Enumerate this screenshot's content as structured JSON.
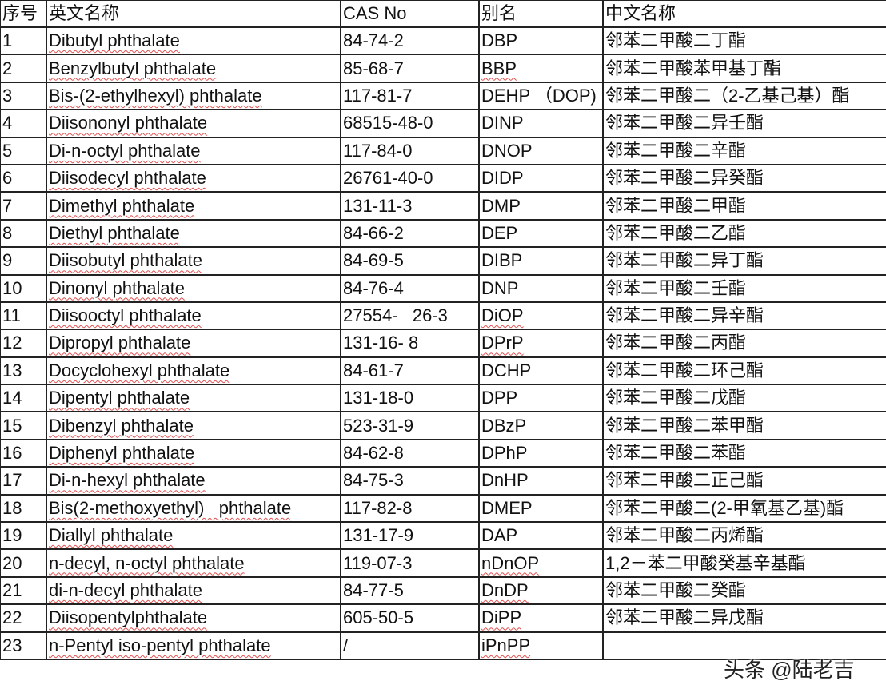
{
  "header": [
    "序号",
    "英文名称",
    "CAS No",
    "别名",
    "中文名称"
  ],
  "rows": [
    {
      "no": "1",
      "en": "Dibutyl phthalate",
      "cas": "84-74-2",
      "alias": "DBP",
      "cn": "邻苯二甲酸二丁酯"
    },
    {
      "no": "2",
      "en": "Benzylbutyl phthalate",
      "cas": "85-68-7",
      "alias": "BBP",
      "cn": "邻苯二甲酸苯甲基丁酯"
    },
    {
      "no": "3",
      "en": "Bis-(2-ethylhexyl) phthalate",
      "cas": "117-81-7",
      "alias": "DEHP （DOP)",
      "cn": "邻苯二甲酸二（2-乙基己基）酯"
    },
    {
      "no": "4",
      "en": "Diisononyl phthalate",
      "cas": "68515-48-0",
      "alias": "DINP",
      "cn": "邻苯二甲酸二异壬酯"
    },
    {
      "no": "5",
      "en": "Di-n-octyl phthalate",
      "cas": "117-84-0",
      "alias": "DNOP",
      "cn": "邻苯二甲酸二辛酯"
    },
    {
      "no": "6",
      "en": "Diisodecyl phthalate",
      "cas": "26761-40-0",
      "alias": "DIDP",
      "cn": "邻苯二甲酸二异癸酯"
    },
    {
      "no": "7",
      "en": "Dimethyl phthalate",
      "cas": "131-11-3",
      "alias": "DMP",
      "cn": "邻苯二甲酸二甲酯"
    },
    {
      "no": "8",
      "en": "Diethyl phthalate",
      "cas": "84-66-2",
      "alias": "DEP",
      "cn": "邻苯二甲酸二乙酯"
    },
    {
      "no": "9",
      "en": "Diisobutyl phthalate",
      "cas": "84-69-5",
      "alias": "DIBP",
      "cn": "邻苯二甲酸二异丁酯"
    },
    {
      "no": "10",
      "en": "Dinonyl phthalate",
      "cas": "84-76-4",
      "alias": "DNP",
      "cn": "邻苯二甲酸二壬酯"
    },
    {
      "no": "11",
      "en": "Diisooctyl phthalate",
      "cas": "27554-   26-3",
      "alias": "DiOP",
      "cn": "邻苯二甲酸二异辛酯"
    },
    {
      "no": "12",
      "en": "Dipropyl phthalate",
      "cas": "131-16- 8",
      "alias": "DPrP",
      "cn": "邻苯二甲酸二丙酯"
    },
    {
      "no": "13",
      "en": "Docyclohexyl phthalate",
      "cas": "84-61-7",
      "alias": "DCHP",
      "cn": "邻苯二甲酸二环己酯"
    },
    {
      "no": "14",
      "en": "Dipentyl phthalate",
      "cas": "131-18-0",
      "alias": "DPP",
      "cn": "邻苯二甲酸二戊酯"
    },
    {
      "no": "15",
      "en": "Dibenzyl phthalate",
      "cas": "523-31-9",
      "alias": "DBzP",
      "cn": "邻苯二甲酸二苯甲酯"
    },
    {
      "no": "16",
      "en": "Diphenyl phthalate",
      "cas": "84-62-8",
      "alias": "DPhP",
      "cn": "邻苯二甲酸二苯酯"
    },
    {
      "no": "17",
      "en": "Di-n-hexyl phthalate",
      "cas": "84-75-3",
      "alias": "DnHP",
      "cn": "邻苯二甲酸二正己酯"
    },
    {
      "no": "18",
      "en": "Bis(2-methoxyethyl)   phthalate",
      "cas": "117-82-8",
      "alias": "DMEP",
      "cn": "邻苯二甲酸二(2-甲氧基乙基)酯"
    },
    {
      "no": "19",
      "en": "Diallyl phthalate",
      "cas": "131-17-9",
      "alias": "DAP",
      "cn": "邻苯二甲酸二丙烯酯"
    },
    {
      "no": "20",
      "en": "n-decyl, n-octyl phthalate",
      "cas": "119-07-3",
      "alias": "nDnOP",
      "cn": "1,2－苯二甲酸癸基辛基酯"
    },
    {
      "no": "21",
      "en": "di-n-decyl phthalate",
      "cas": "84-77-5",
      "alias": "DnDP",
      "cn": "邻苯二甲酸二癸酯"
    },
    {
      "no": "22",
      "en": "Diisopentylphthalate",
      "cas": "605-50-5",
      "alias": "DiPP",
      "cn": "邻苯二甲酸二异戊酯"
    },
    {
      "no": "23",
      "en": "n-Pentyl iso-pentyl phthalate",
      "cas": "/",
      "alias": "iPnPP",
      "cn": ""
    }
  ],
  "spellcheck_aliases": [
    "BBP",
    "DiOP",
    "DPrP",
    "nDnOP",
    "DnDP",
    "DiPP",
    "iPnPP"
  ],
  "watermark": "头条 @陆老吉"
}
